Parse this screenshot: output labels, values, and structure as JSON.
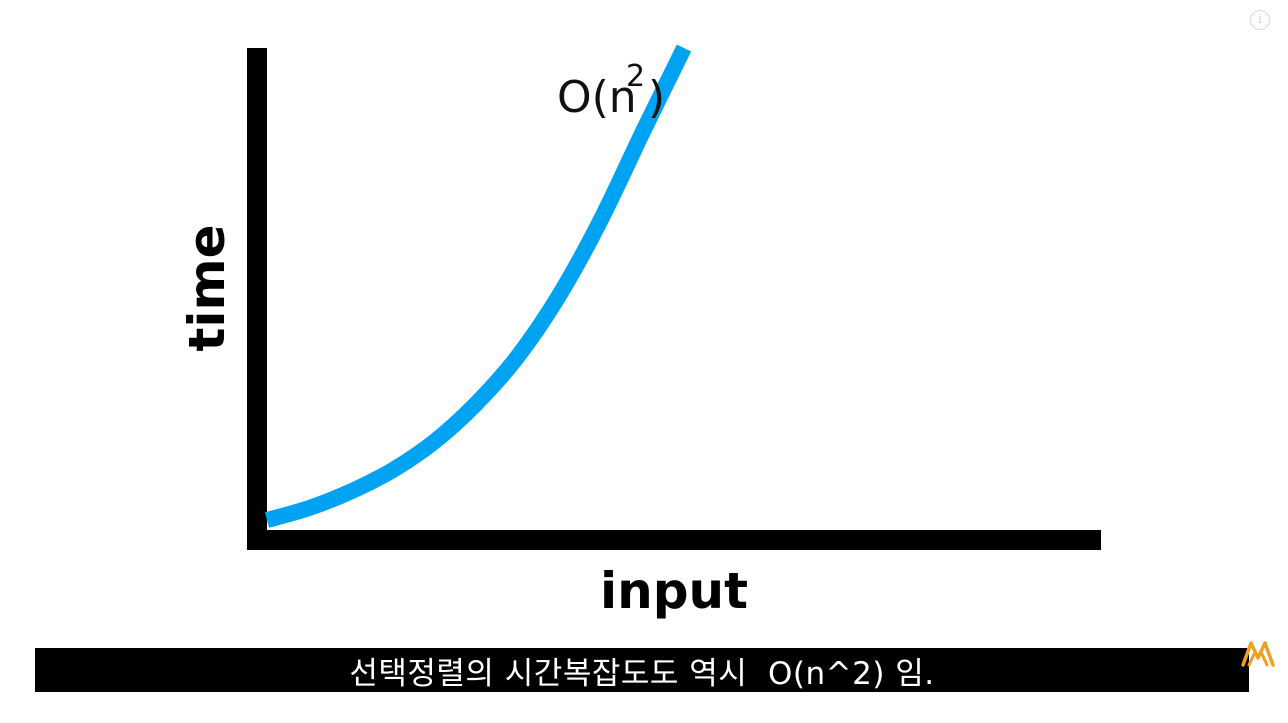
{
  "chart_data": {
    "type": "line",
    "xlabel": "input",
    "ylabel": "time",
    "annotation": {
      "base": "O(n",
      "superscript": "2",
      "close": ")"
    },
    "curve": "exponential",
    "x": [
      0,
      1,
      2,
      3,
      4,
      5,
      6,
      7,
      8,
      9,
      10
    ],
    "y": [
      0,
      2.5,
      6,
      10.5,
      16.5,
      24.5,
      34.5,
      47.5,
      63.5,
      82,
      100
    ],
    "xlim": [
      0,
      20
    ],
    "ylim": [
      0,
      100
    ],
    "grid": false,
    "series": [
      {
        "values": [
          0,
          2.5,
          6,
          10.5,
          16.5,
          24.5,
          34.5,
          47.5,
          63.5,
          82,
          100
        ],
        "color": "#00a2f2"
      }
    ],
    "axis_color": "#000000"
  },
  "subtitle": {
    "text": "선택정렬의 시간복잡도도 역시  O(n^2) 임."
  },
  "info_icon": {
    "icon": "info-icon",
    "glyph": "i"
  },
  "logo": {
    "icon": "channel-logo-icon",
    "color": "#f0a020"
  }
}
